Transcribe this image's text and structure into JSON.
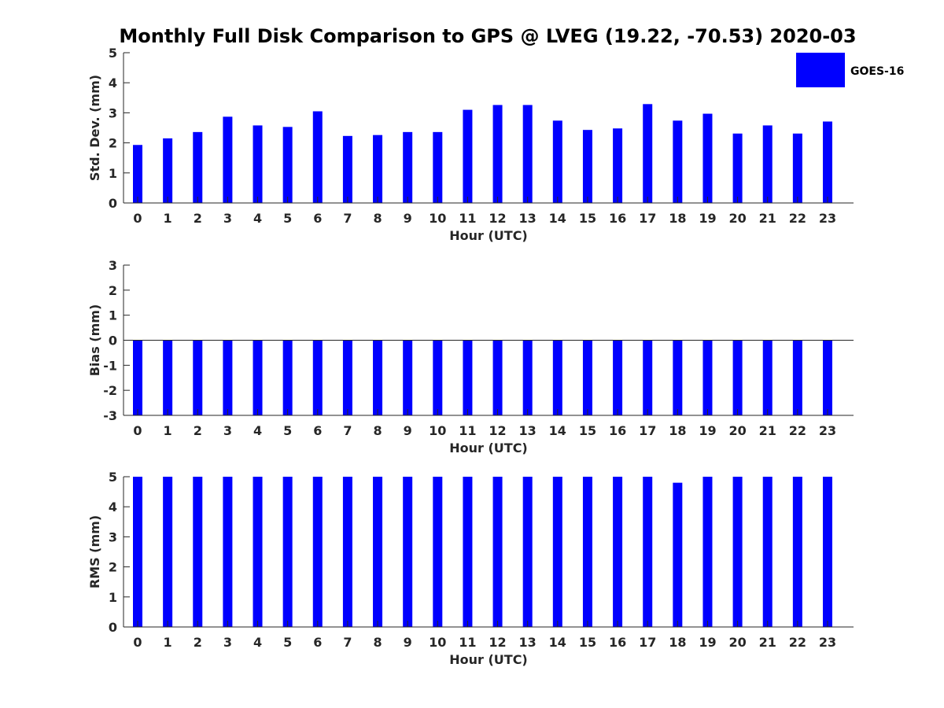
{
  "chart_data": {
    "title": "Monthly Full Disk Comparison to GPS @ LVEG (19.22, -70.53) 2020-03",
    "legend": {
      "placement": "top-right",
      "entries": [
        "GOES-16"
      ]
    },
    "series_color": "#0000ff",
    "axis_color": "#262626",
    "panels": [
      {
        "type": "bar",
        "xlabel": "Hour (UTC)",
        "ylabel": "Std. Dev. (mm)",
        "ylim": [
          0,
          5
        ],
        "yticks": [
          "0",
          "1",
          "2",
          "3",
          "4",
          "5"
        ],
        "xticks": [
          "0",
          "1",
          "2",
          "3",
          "4",
          "5",
          "6",
          "7",
          "8",
          "9",
          "10",
          "11",
          "12",
          "13",
          "14",
          "15",
          "16",
          "17",
          "18",
          "19",
          "20",
          "21",
          "22",
          "23"
        ],
        "series": [
          {
            "name": "GOES-16",
            "values": [
              1.93,
              2.15,
              2.36,
              2.87,
              2.58,
              2.53,
              3.05,
              2.23,
              2.26,
              2.36,
              2.36,
              3.1,
              3.26,
              3.26,
              2.74,
              2.43,
              2.48,
              3.29,
              2.74,
              2.97,
              2.31,
              2.58,
              2.31,
              2.71
            ]
          }
        ]
      },
      {
        "type": "bar",
        "xlabel": "Hour (UTC)",
        "ylabel": "Bias (mm)",
        "ylim": [
          -3,
          3
        ],
        "yticks": [
          "-3",
          "-2",
          "-1",
          "0",
          "1",
          "2",
          "3"
        ],
        "xticks": [
          "0",
          "1",
          "2",
          "3",
          "4",
          "5",
          "6",
          "7",
          "8",
          "9",
          "10",
          "11",
          "12",
          "13",
          "14",
          "15",
          "16",
          "17",
          "18",
          "19",
          "20",
          "21",
          "22",
          "23"
        ],
        "series": [
          {
            "name": "GOES-16",
            "values": [
              -3,
              -3,
              -3,
              -3,
              -3,
              -3,
              -3,
              -3,
              -3,
              -3,
              -3,
              -3,
              -3,
              -3,
              -3,
              -3,
              -3,
              -3,
              -3,
              -3,
              -3,
              -3,
              -3,
              -3
            ]
          }
        ]
      },
      {
        "type": "bar",
        "xlabel": "Hour (UTC)",
        "ylabel": "RMS (mm)",
        "ylim": [
          0,
          5
        ],
        "yticks": [
          "0",
          "1",
          "2",
          "3",
          "4",
          "5"
        ],
        "xticks": [
          "0",
          "1",
          "2",
          "3",
          "4",
          "5",
          "6",
          "7",
          "8",
          "9",
          "10",
          "11",
          "12",
          "13",
          "14",
          "15",
          "16",
          "17",
          "18",
          "19",
          "20",
          "21",
          "22",
          "23"
        ],
        "series": [
          {
            "name": "GOES-16",
            "values": [
              5,
              5,
              5,
              5,
              5,
              5,
              5,
              5,
              5,
              5,
              5,
              5,
              5,
              5,
              5,
              5,
              5,
              5,
              4.8,
              5,
              5,
              5,
              5,
              5
            ]
          }
        ]
      }
    ]
  }
}
